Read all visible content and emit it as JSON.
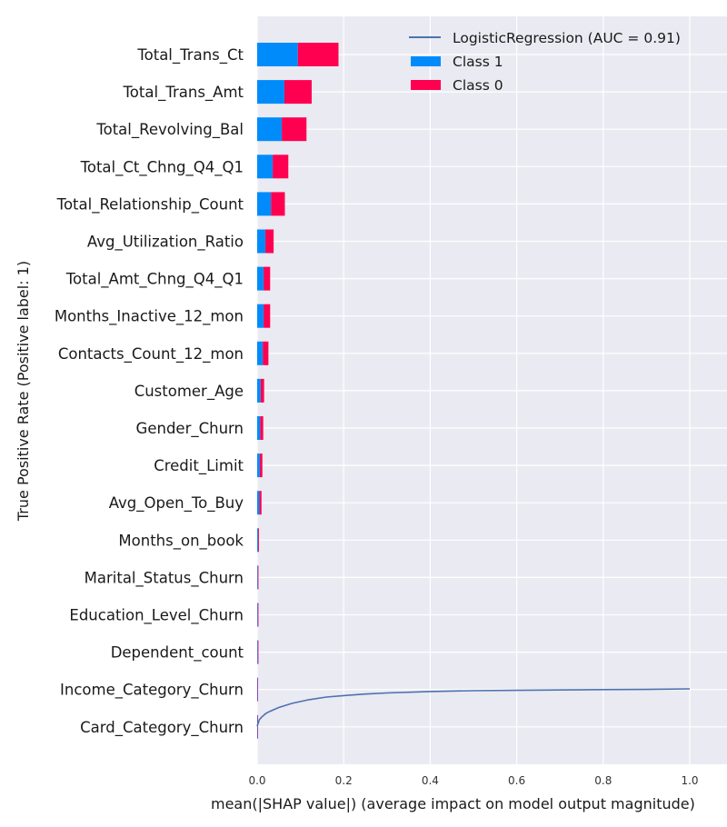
{
  "chart_data": [
    {
      "type": "bar",
      "orientation": "horizontal",
      "stacked": true,
      "categories": [
        "Total_Trans_Ct",
        "Total_Trans_Amt",
        "Total_Revolving_Bal",
        "Total_Ct_Chng_Q4_Q1",
        "Total_Relationship_Count",
        "Avg_Utilization_Ratio",
        "Total_Amt_Chng_Q4_Q1",
        "Months_Inactive_12_mon",
        "Contacts_Count_12_mon",
        "Customer_Age",
        "Gender_Churn",
        "Credit_Limit",
        "Avg_Open_To_Buy",
        "Months_on_book",
        "Marital_Status_Churn",
        "Education_Level_Churn",
        "Dependent_count",
        "Income_Category_Churn",
        "Card_Category_Churn"
      ],
      "series": [
        {
          "name": "Class 1",
          "color": "#008bfb",
          "values": [
            0.094,
            0.063,
            0.057,
            0.036,
            0.032,
            0.019,
            0.015,
            0.015,
            0.013,
            0.008,
            0.007,
            0.006,
            0.005,
            0.002,
            0.0015,
            0.0015,
            0.0015,
            0.001,
            0.001
          ]
        },
        {
          "name": "Class 0",
          "color": "#ff0051",
          "values": [
            0.094,
            0.063,
            0.057,
            0.036,
            0.032,
            0.019,
            0.015,
            0.015,
            0.013,
            0.008,
            0.007,
            0.006,
            0.005,
            0.002,
            0.0015,
            0.0015,
            0.0015,
            0.001,
            0.001
          ]
        }
      ],
      "xlabel": "mean(|SHAP value|) (average impact on model output magnitude)",
      "xlim": [
        0,
        1.05
      ],
      "xticks": [
        "0.0",
        "0.2",
        "0.4",
        "0.6",
        "0.8",
        "1.0"
      ],
      "grid": true,
      "legend_position": "top-right"
    },
    {
      "type": "line",
      "series": [
        {
          "name": "LogisticRegression (AUC = 0.91)",
          "color": "#4c72b0",
          "x": [
            0,
            0.005,
            0.01,
            0.02,
            0.03,
            0.05,
            0.08,
            0.12,
            0.16,
            0.2,
            0.25,
            0.3,
            0.4,
            0.5,
            0.6,
            0.7,
            0.8,
            0.9,
            1.0
          ],
          "y": [
            0,
            0.017,
            0.024,
            0.034,
            0.04,
            0.05,
            0.061,
            0.071,
            0.078,
            0.082,
            0.086,
            0.089,
            0.093,
            0.095,
            0.096,
            0.097,
            0.098,
            0.0985,
            0.1
          ]
        }
      ],
      "ylabel": "True Positive Rate (Positive label: 1)"
    }
  ]
}
